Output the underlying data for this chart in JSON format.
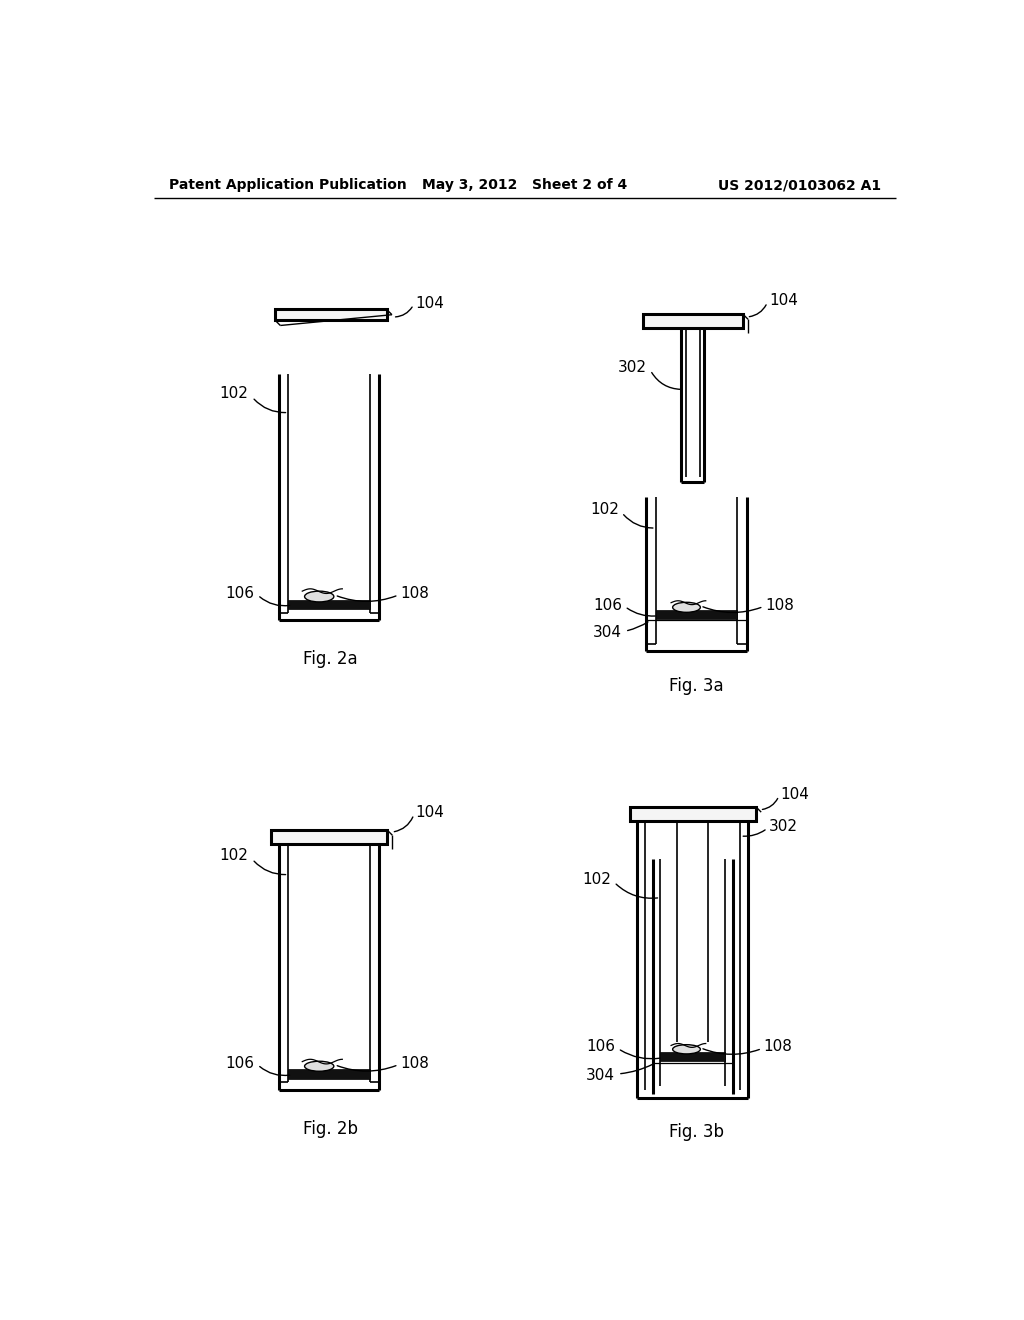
{
  "header_left": "Patent Application Publication",
  "header_center": "May 3, 2012   Sheet 2 of 4",
  "header_right": "US 2012/0103062 A1",
  "background_color": "#ffffff"
}
